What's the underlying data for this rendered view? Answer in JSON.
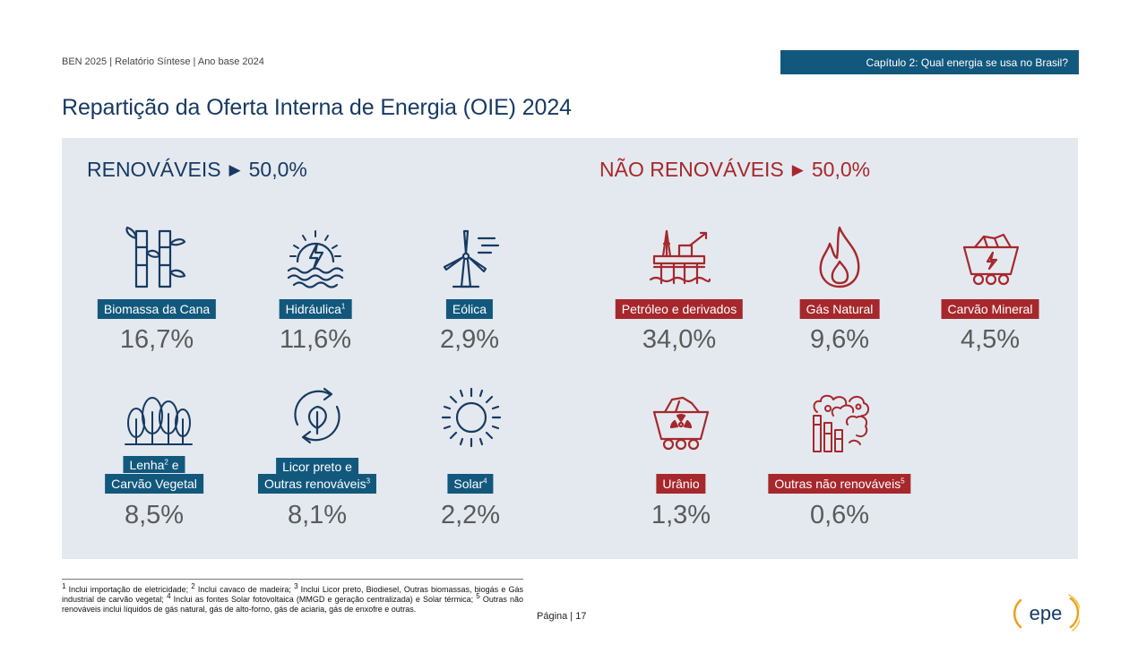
{
  "header": {
    "report": "BEN 2025 | Relatório Síntese | Ano base 2024",
    "chapter": "Capítulo 2: Qual energia se usa no Brasil?"
  },
  "title": "Repartição da Oferta Interna de Energia (OIE) 2024",
  "renovaveis": {
    "name": "RENOVÁVEIS",
    "total": "50,0%",
    "items": [
      {
        "label": "Biomassa da Cana",
        "sup": "",
        "value": "16,7%",
        "icon": "sugarcane-icon"
      },
      {
        "label": "Hidráulica",
        "sup": "1",
        "value": "11,6%",
        "icon": "hydro-icon"
      },
      {
        "label": "Eólica",
        "sup": "",
        "value": "2,9%",
        "icon": "wind-turbine-icon"
      },
      {
        "label": "Lenha",
        "sup": "2",
        "label2": "e",
        "label3": "Carvão Vegetal",
        "value": "8,5%",
        "icon": "forest-icon"
      },
      {
        "label": "Licor preto e",
        "label2": "Outras renováveis",
        "sup": "3",
        "value": "8,1%",
        "icon": "recycle-leaf-icon"
      },
      {
        "label": "Solar",
        "sup": "4",
        "value": "2,2%",
        "icon": "sun-icon"
      }
    ]
  },
  "nao_renovaveis": {
    "name": "NÃO RENOVÁVEIS",
    "total": "50,0%",
    "items": [
      {
        "label": "Petróleo e derivados",
        "sup": "",
        "value": "34,0%",
        "icon": "oil-platform-icon"
      },
      {
        "label": "Gás Natural",
        "sup": "",
        "value": "9,6%",
        "icon": "flame-icon"
      },
      {
        "label": "Carvão Mineral",
        "sup": "",
        "value": "4,5%",
        "icon": "coal-cart-icon"
      },
      {
        "label": "Urânio",
        "sup": "",
        "value": "1,3%",
        "icon": "uranium-cart-icon"
      },
      {
        "label": "Outras não renováveis",
        "sup": "5",
        "value": "0,6%",
        "icon": "industry-smoke-icon"
      }
    ]
  },
  "footnote": {
    "n1": "1",
    "t1": " Inclui importação de eletricidade; ",
    "n2": "2",
    "t2": " Inclui cavaco de madeira; ",
    "n3": "3",
    "t3": " Inclui Licor preto, Biodiesel, Outras biomassas, biogás e Gás industrial de carvão vegetal; ",
    "n4": "4",
    "t4": " Inclui as fontes Solar fotovoltaica (MMGD e geração centralizada) e Solar térmica; ",
    "n5": "5",
    "t5": " Outras não renováveis inclui líquidos de gás natural, gás de alto-forno, gás de aciaria, gás de enxofre e outras."
  },
  "page": "Página | 17",
  "logo": "epe",
  "colors": {
    "blue": "#12587d",
    "navy": "#173a63",
    "red": "#a6282c",
    "panel": "#e4e9ef"
  }
}
